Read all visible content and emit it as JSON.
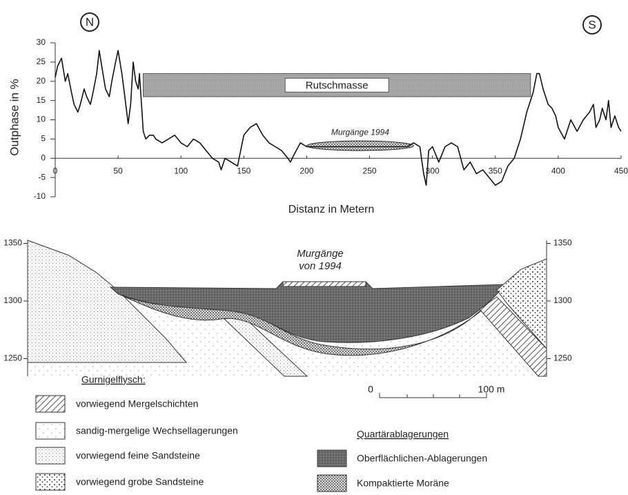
{
  "chart_data": {
    "type": "line",
    "compass": [
      "N",
      "S"
    ],
    "xlabel": "Distanz in Metern",
    "ylabel": "Outphase in %",
    "x": [
      0,
      2,
      5,
      8,
      10,
      13,
      15,
      18,
      20,
      23,
      25,
      28,
      30,
      33,
      35,
      38,
      40,
      43,
      45,
      48,
      50,
      53,
      55,
      58,
      60,
      62,
      64,
      66,
      67,
      70,
      72,
      75,
      78,
      80,
      85,
      90,
      95,
      100,
      105,
      110,
      115,
      120,
      125,
      130,
      132,
      135,
      140,
      145,
      150,
      155,
      160,
      165,
      170,
      175,
      180,
      185,
      187,
      190,
      195,
      200,
      210,
      220,
      230,
      240,
      250,
      260,
      270,
      280,
      285,
      290,
      293,
      295,
      297,
      300,
      305,
      310,
      315,
      320,
      325,
      330,
      335,
      340,
      345,
      350,
      355,
      360,
      365,
      370,
      375,
      380,
      383,
      385,
      388,
      392,
      395,
      398,
      400,
      405,
      410,
      415,
      420,
      425,
      428,
      430,
      433,
      435,
      438,
      440,
      442,
      445,
      448,
      450
    ],
    "series": [
      {
        "name": "Outphase",
        "color": "#111111",
        "values": [
          21,
          24,
          26,
          20,
          22,
          17,
          14,
          12,
          14,
          18,
          16,
          14,
          17,
          22,
          28,
          22,
          18,
          16,
          20,
          25,
          28,
          22,
          17,
          9,
          14,
          25,
          20,
          18,
          22,
          7,
          5,
          6,
          6,
          5,
          4,
          5,
          6,
          4,
          3,
          5,
          4,
          2,
          0,
          -1,
          -3,
          0,
          -1,
          -2,
          6,
          8,
          9,
          6,
          4,
          3,
          2,
          0,
          -1,
          1,
          4,
          3,
          3,
          3,
          3,
          3,
          3,
          3,
          3,
          3,
          4,
          3,
          -4,
          -7,
          2,
          3,
          -1,
          3,
          4,
          3,
          -3,
          -1,
          -4,
          -3,
          -5,
          -7,
          -6,
          -2,
          0,
          5,
          12,
          17,
          22,
          22,
          18,
          14,
          13,
          11,
          8,
          5,
          10,
          7,
          10,
          12,
          14,
          8,
          10,
          13,
          10,
          15,
          8,
          11,
          8,
          7
        ]
      }
    ],
    "annotations": [
      {
        "text": "Rutschmasse",
        "x": [
          70,
          378
        ],
        "y": [
          16,
          22
        ]
      },
      {
        "text": "Murgänge 1994",
        "x": [
          200,
          285
        ],
        "y": [
          2,
          4.5
        ]
      }
    ],
    "xlim": [
      0,
      450
    ],
    "ylim": [
      -10,
      30
    ],
    "xticks": [
      0,
      50,
      100,
      150,
      200,
      250,
      300,
      350,
      400,
      450
    ],
    "yticks": [
      -10,
      -5,
      0,
      5,
      10,
      15,
      20,
      25,
      30
    ]
  },
  "cross_section": {
    "annotation": [
      "Murgänge",
      "von 1994"
    ],
    "elevation_ticks": [
      1350,
      1300,
      1250
    ],
    "scale_bar": [
      "0",
      "100 m"
    ],
    "legend_groups": [
      {
        "title": "Gurnigelflysch:",
        "items": [
          "vorwiegend Mergelschichten",
          "sandig-mergelige Wechsellagerungen",
          "vorwiegend feine Sandsteine",
          "vorwiegend grobe Sandsteine"
        ]
      },
      {
        "title": "Quartärablagerungen",
        "items": [
          "Oberflächlichen-Ablagerungen",
          "Kompaktierte Moräne"
        ]
      }
    ]
  }
}
